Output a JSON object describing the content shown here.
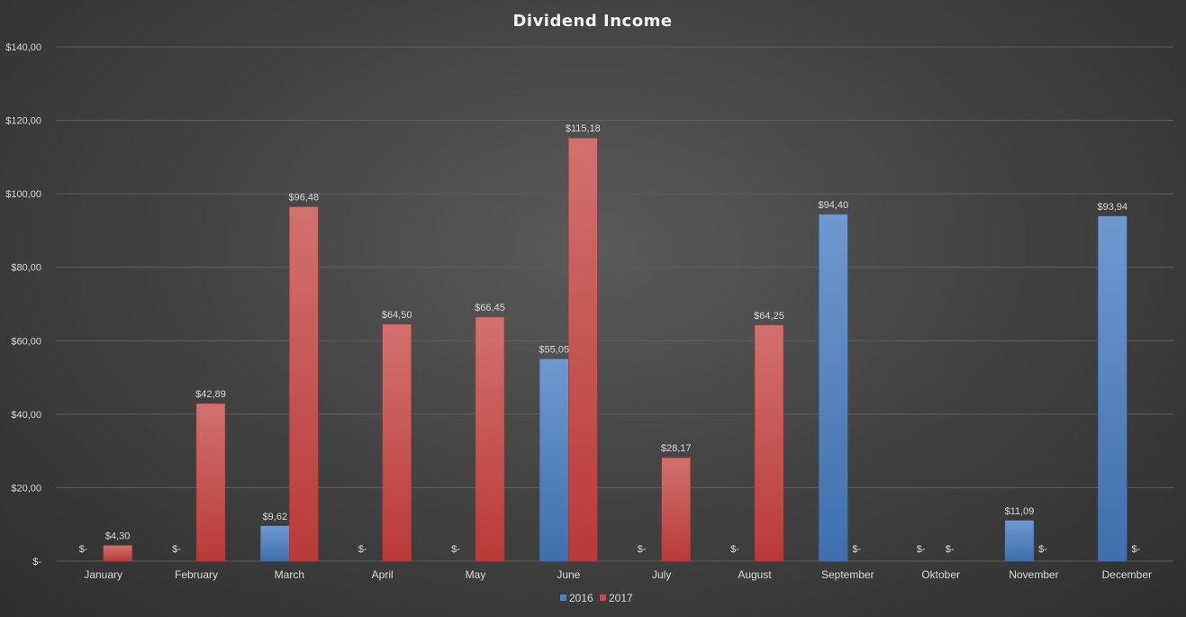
{
  "chart_data": {
    "type": "bar",
    "title": "Dividend Income",
    "categories": [
      "January",
      "February",
      "March",
      "April",
      "May",
      "June",
      "July",
      "August",
      "September",
      "Oktober",
      "November",
      "December"
    ],
    "series": [
      {
        "name": "2016",
        "color": "#4f81bd",
        "values": [
          0,
          0,
          9.62,
          0,
          0,
          55.05,
          0,
          0,
          94.4,
          0,
          11.09,
          93.94
        ],
        "labels": [
          "$-",
          "$-",
          "$9,62",
          "$-",
          "$-",
          "$55,05",
          "$-",
          "$-",
          "$94,40",
          "$-",
          "$11,09",
          "$93,94"
        ]
      },
      {
        "name": "2017",
        "color": "#c0504d",
        "values": [
          4.3,
          42.89,
          96.48,
          64.5,
          66.45,
          115.18,
          28.17,
          64.25,
          0,
          0,
          0,
          0
        ],
        "labels": [
          "$4,30",
          "$42,89",
          "$96,48",
          "$64,50",
          "$66,45",
          "$115,18",
          "$28,17",
          "$64,25",
          "$-",
          "$-",
          "$-",
          "$-"
        ]
      }
    ],
    "ylim": [
      0,
      140
    ],
    "yticks": [
      0,
      20,
      40,
      60,
      80,
      100,
      120,
      140
    ],
    "ytick_labels": [
      "$-",
      "$20,00",
      "$40,00",
      "$60,00",
      "$80,00",
      "$100,00",
      "$120,00",
      "$140,00"
    ],
    "grid": true,
    "legend_position": "bottom"
  }
}
